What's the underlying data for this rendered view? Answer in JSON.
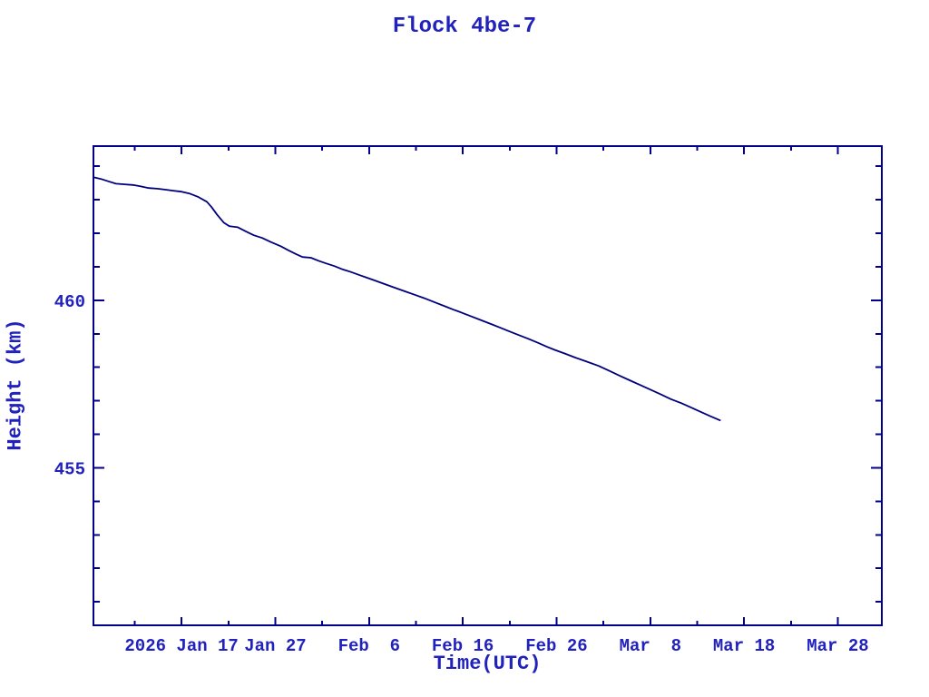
{
  "chart_data": {
    "type": "line",
    "title": "Flock 4be-7",
    "xlabel": "Time(UTC)",
    "ylabel": "Height (km)",
    "x_unit": "day of year 2026",
    "x_range": [
      7.6,
      91.7
    ],
    "y_range": [
      450.3,
      464.6
    ],
    "grid": false,
    "legend": null,
    "x_major_ticks": [
      {
        "value": 17,
        "label": "2026 Jan 17"
      },
      {
        "value": 27,
        "label": "Jan 27"
      },
      {
        "value": 37,
        "label": "Feb  6"
      },
      {
        "value": 47,
        "label": "Feb 16"
      },
      {
        "value": 57,
        "label": "Feb 26"
      },
      {
        "value": 67,
        "label": "Mar  8"
      },
      {
        "value": 77,
        "label": "Mar 18"
      },
      {
        "value": 87,
        "label": "Mar 28"
      }
    ],
    "x_minor_ticks": [
      12,
      22,
      32,
      42,
      52,
      62,
      72,
      82
    ],
    "y_major_ticks": [
      {
        "value": 455,
        "label": "455"
      },
      {
        "value": 460,
        "label": "460"
      }
    ],
    "y_minor_ticks": [
      451,
      452,
      453,
      454,
      456,
      457,
      458,
      459,
      461,
      462,
      463,
      464
    ],
    "colors": {
      "text": "#2121bd",
      "frame": "#00008b",
      "line": "#00007e",
      "background": "#ffffff"
    },
    "series": [
      {
        "name": "Flock 4be-7 height",
        "color": "#00007e",
        "points": [
          [
            7.6,
            463.67
          ],
          [
            8.4,
            463.62
          ],
          [
            9.2,
            463.55
          ],
          [
            10.0,
            463.48
          ],
          [
            10.9,
            463.46
          ],
          [
            11.8,
            463.44
          ],
          [
            12.6,
            463.4
          ],
          [
            13.5,
            463.35
          ],
          [
            14.4,
            463.33
          ],
          [
            15.3,
            463.3
          ],
          [
            16.1,
            463.27
          ],
          [
            17.0,
            463.24
          ],
          [
            17.9,
            463.18
          ],
          [
            18.8,
            463.08
          ],
          [
            19.7,
            462.94
          ],
          [
            20.2,
            462.78
          ],
          [
            20.8,
            462.55
          ],
          [
            21.5,
            462.32
          ],
          [
            22.1,
            462.21
          ],
          [
            23.0,
            462.18
          ],
          [
            23.9,
            462.05
          ],
          [
            24.7,
            461.94
          ],
          [
            25.6,
            461.86
          ],
          [
            26.5,
            461.74
          ],
          [
            27.6,
            461.61
          ],
          [
            28.4,
            461.49
          ],
          [
            29.2,
            461.38
          ],
          [
            29.9,
            461.29
          ],
          [
            30.8,
            461.27
          ],
          [
            31.6,
            461.18
          ],
          [
            32.4,
            461.1
          ],
          [
            33.3,
            461.02
          ],
          [
            34.2,
            460.92
          ],
          [
            35.1,
            460.84
          ],
          [
            36.0,
            460.75
          ],
          [
            36.6,
            460.69
          ],
          [
            37.7,
            460.58
          ],
          [
            38.8,
            460.47
          ],
          [
            39.9,
            460.36
          ],
          [
            41.0,
            460.25
          ],
          [
            41.7,
            460.18
          ],
          [
            42.9,
            460.06
          ],
          [
            44.0,
            459.94
          ],
          [
            45.1,
            459.82
          ],
          [
            46.0,
            459.72
          ],
          [
            46.6,
            459.66
          ],
          [
            47.8,
            459.53
          ],
          [
            49.0,
            459.4
          ],
          [
            50.1,
            459.28
          ],
          [
            51.0,
            459.18
          ],
          [
            51.8,
            459.09
          ],
          [
            52.9,
            458.97
          ],
          [
            54.0,
            458.85
          ],
          [
            55.1,
            458.72
          ],
          [
            56.0,
            458.61
          ],
          [
            56.8,
            458.52
          ],
          [
            57.9,
            458.41
          ],
          [
            59.0,
            458.29
          ],
          [
            60.1,
            458.18
          ],
          [
            61.5,
            458.04
          ],
          [
            62.6,
            457.9
          ],
          [
            63.8,
            457.74
          ],
          [
            64.9,
            457.6
          ],
          [
            66.0,
            457.46
          ],
          [
            66.8,
            457.36
          ],
          [
            68.0,
            457.21
          ],
          [
            69.2,
            457.05
          ],
          [
            70.3,
            456.93
          ],
          [
            71.2,
            456.82
          ],
          [
            72.3,
            456.68
          ],
          [
            73.4,
            456.54
          ],
          [
            74.0,
            456.47
          ],
          [
            74.5,
            456.41
          ]
        ]
      }
    ]
  }
}
